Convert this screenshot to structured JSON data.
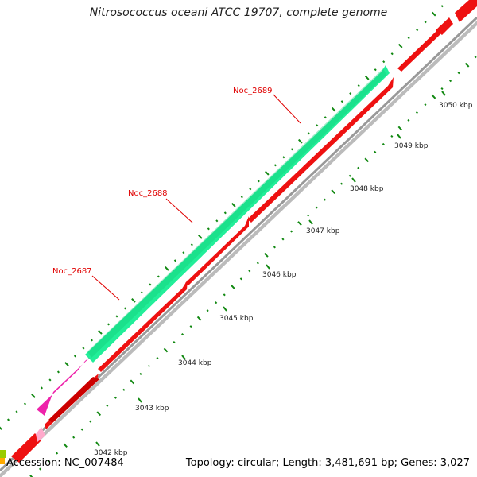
{
  "title": "Nitrosococcus oceani ATCC 19707, complete genome",
  "footer": {
    "accession": "Accession: NC_007484",
    "summary": "Topology: circular; Length: 3,481,691 bp; Genes: 3,027"
  },
  "colors": {
    "cds": "#ee1111",
    "cds_dark": "#aa0000",
    "gene_green": "#22ee99",
    "gene_magenta": "#ee22aa",
    "tick": "#118811",
    "label": "#e00000"
  },
  "kbp_ticks": [
    {
      "label": "3042 kbp"
    },
    {
      "label": "3043 kbp"
    },
    {
      "label": "3044 kbp"
    },
    {
      "label": "3045 kbp"
    },
    {
      "label": "3046 kbp"
    },
    {
      "label": "3047 kbp"
    },
    {
      "label": "3048 kbp"
    },
    {
      "label": "3049 kbp"
    },
    {
      "label": "3050 kbp"
    }
  ],
  "gene_labels": [
    {
      "label": "Noc_2687"
    },
    {
      "label": "Noc_2688"
    },
    {
      "label": "Noc_2689"
    }
  ]
}
